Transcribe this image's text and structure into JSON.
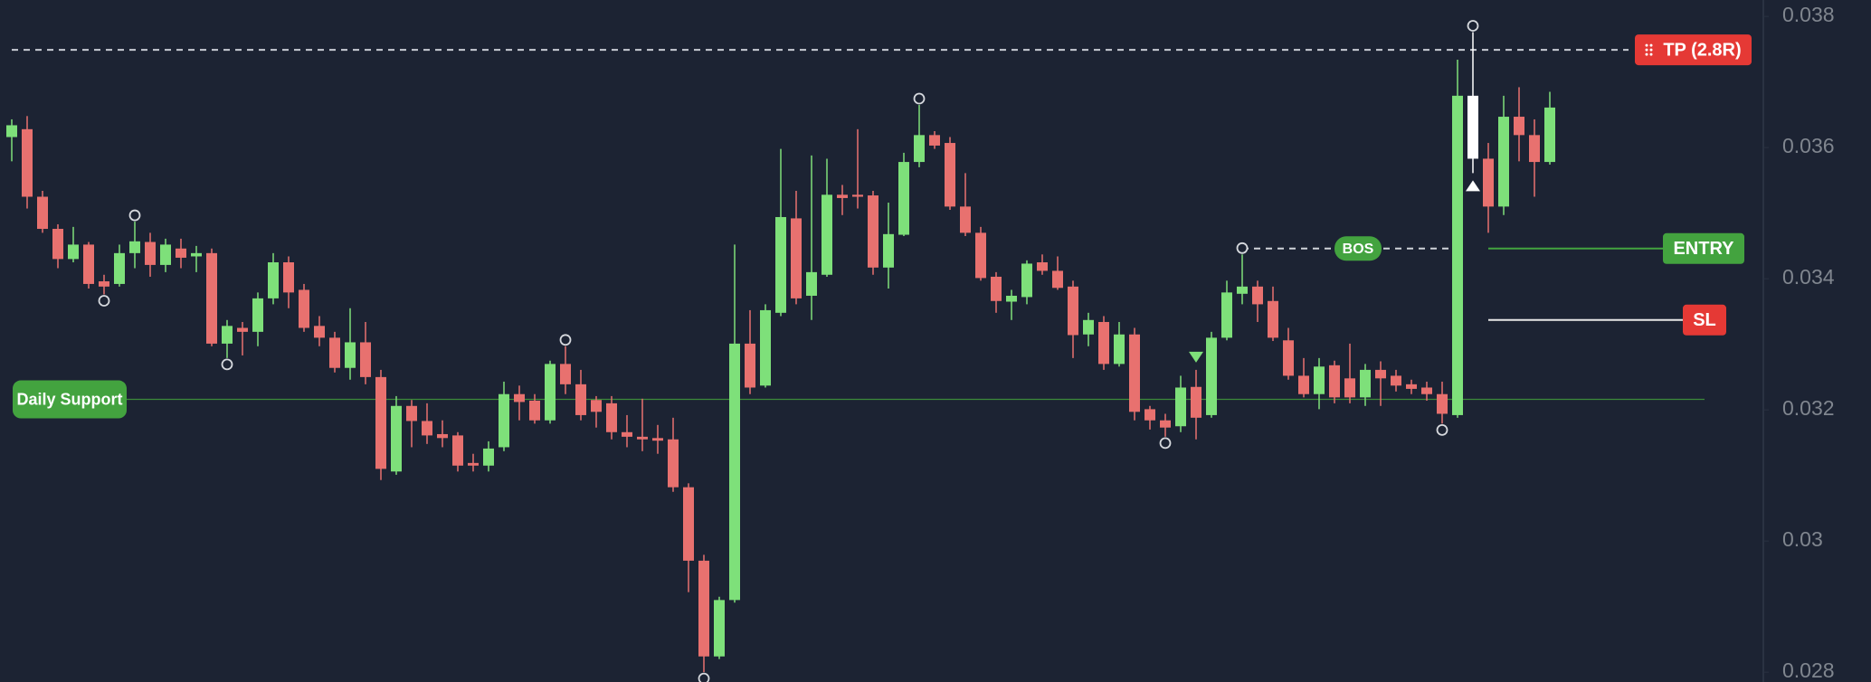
{
  "chart_data": {
    "type": "candlestick",
    "ylim": [
      0.02785,
      0.03825
    ],
    "yticks": [
      0.038,
      0.036,
      0.034,
      0.032,
      0.03,
      0.028
    ],
    "up_color": "#7ee07a",
    "down_color": "#e8716f",
    "highlight": {
      "index": 95,
      "color": "#ffffff"
    },
    "open": [
      0.03616,
      0.03628,
      0.03525,
      0.03476,
      0.0343,
      0.03452,
      0.03396,
      0.03392,
      0.03439,
      0.03456,
      0.03421,
      0.03446,
      0.03434,
      0.03439,
      0.03301,
      0.03325,
      0.03319,
      0.0337,
      0.03425,
      0.03383,
      0.03328,
      0.0331,
      0.03264,
      0.03303,
      0.0325,
      0.03106,
      0.03206,
      0.03183,
      0.03163,
      0.03161,
      0.03119,
      0.03115,
      0.03143,
      0.03224,
      0.03214,
      0.03184,
      0.0327,
      0.03239,
      0.03215,
      0.0321,
      0.03166,
      0.03159,
      0.03157,
      0.03155,
      0.03082,
      0.0297,
      0.02824,
      0.0291,
      0.03301,
      0.03237,
      0.03348,
      0.03492,
      0.03374,
      0.03406,
      0.03528,
      0.03528,
      0.03527,
      0.03417,
      0.03467,
      0.03578,
      0.03619,
      0.03607,
      0.0351,
      0.0347,
      0.03403,
      0.03365,
      0.03372,
      0.03425,
      0.03412,
      0.03388,
      0.03315,
      0.03334,
      0.0327,
      0.03315,
      0.03201,
      0.03184,
      0.03175,
      0.03235,
      0.03192,
      0.0331,
      0.03377,
      0.03388,
      0.03366,
      0.03306,
      0.03252,
      0.03224,
      0.03268,
      0.03248,
      0.03219,
      0.03261,
      0.03252,
      0.03239,
      0.03234,
      0.03224,
      0.03192,
      0.03679,
      0.03583,
      0.0351,
      0.03647,
      0.03619,
      0.03578
    ],
    "high": [
      0.03643,
      0.03648,
      0.03534,
      0.03483,
      0.03479,
      0.03456,
      0.03406,
      0.03452,
      0.03487,
      0.0347,
      0.03461,
      0.03461,
      0.0345,
      0.03446,
      0.03337,
      0.03334,
      0.03379,
      0.03439,
      0.03434,
      0.03392,
      0.03343,
      0.03319,
      0.03355,
      0.03334,
      0.03261,
      0.03221,
      0.03215,
      0.0321,
      0.03184,
      0.03166,
      0.03133,
      0.03152,
      0.03243,
      0.03237,
      0.03224,
      0.03275,
      0.03297,
      0.03261,
      0.03221,
      0.03221,
      0.03192,
      0.03217,
      0.03177,
      0.03188,
      0.03088,
      0.02979,
      0.02915,
      0.03452,
      0.03352,
      0.03361,
      0.03598,
      0.03534,
      0.03588,
      0.03583,
      0.03543,
      0.03628,
      0.03534,
      0.03516,
      0.03592,
      0.03665,
      0.03625,
      0.03616,
      0.03561,
      0.03479,
      0.0341,
      0.03383,
      0.03428,
      0.03437,
      0.03434,
      0.03397,
      0.03348,
      0.03343,
      0.03334,
      0.03325,
      0.03206,
      0.03194,
      0.03252,
      0.03261,
      0.03319,
      0.03397,
      0.03437,
      0.03397,
      0.03388,
      0.03325,
      0.03279,
      0.03279,
      0.03275,
      0.03301,
      0.0327,
      0.03274,
      0.03261,
      0.03246,
      0.03243,
      0.03243,
      0.03734,
      0.03776,
      0.03607,
      0.03679,
      0.03692,
      0.03643,
      0.03685
    ],
    "low": [
      0.03579,
      0.03507,
      0.0347,
      0.03416,
      0.03425,
      0.03385,
      0.03376,
      0.03388,
      0.03416,
      0.03403,
      0.0341,
      0.03416,
      0.0341,
      0.03297,
      0.03279,
      0.03283,
      0.03297,
      0.03361,
      0.03355,
      0.03319,
      0.03297,
      0.03257,
      0.03246,
      0.03239,
      0.03093,
      0.03101,
      0.03143,
      0.03148,
      0.03143,
      0.03106,
      0.03106,
      0.03106,
      0.03137,
      0.03184,
      0.03179,
      0.03179,
      0.03224,
      0.03184,
      0.03173,
      0.03155,
      0.03143,
      0.03137,
      0.03133,
      0.03075,
      0.02922,
      0.028,
      0.0282,
      0.02906,
      0.03224,
      0.03234,
      0.03343,
      0.03361,
      0.03337,
      0.03403,
      0.03497,
      0.03507,
      0.03406,
      0.03385,
      0.03465,
      0.0357,
      0.03598,
      0.03505,
      0.03465,
      0.03397,
      0.03348,
      0.03337,
      0.03361,
      0.03406,
      0.03383,
      0.03279,
      0.03297,
      0.03261,
      0.03266,
      0.03184,
      0.0317,
      0.03159,
      0.03166,
      0.03155,
      0.03188,
      0.03306,
      0.03361,
      0.03334,
      0.03305,
      0.03246,
      0.03219,
      0.03201,
      0.0321,
      0.0321,
      0.03206,
      0.03206,
      0.03228,
      0.03224,
      0.03214,
      0.03179,
      0.03188,
      0.03561,
      0.0347,
      0.03497,
      0.03579,
      0.03525,
      0.03574
    ],
    "close": [
      0.03634,
      0.03525,
      0.03476,
      0.0343,
      0.03452,
      0.03392,
      0.03388,
      0.03439,
      0.03457,
      0.03421,
      0.03452,
      0.03432,
      0.03439,
      0.03301,
      0.03328,
      0.03319,
      0.0337,
      0.03425,
      0.03379,
      0.03325,
      0.0331,
      0.03264,
      0.03303,
      0.0325,
      0.0311,
      0.03206,
      0.03183,
      0.03161,
      0.03157,
      0.03115,
      0.03115,
      0.03141,
      0.03224,
      0.03212,
      0.03184,
      0.0327,
      0.03239,
      0.03192,
      0.03197,
      0.03166,
      0.03159,
      0.03155,
      0.03153,
      0.03082,
      0.0297,
      0.02824,
      0.0291,
      0.03301,
      0.03234,
      0.03352,
      0.03494,
      0.0337,
      0.0341,
      0.03528,
      0.03523,
      0.03525,
      0.03417,
      0.03468,
      0.03578,
      0.03619,
      0.03603,
      0.0351,
      0.0347,
      0.03401,
      0.03366,
      0.03374,
      0.03423,
      0.03412,
      0.03386,
      0.03314,
      0.03337,
      0.0327,
      0.03315,
      0.03197,
      0.03184,
      0.03173,
      0.03234,
      0.03188,
      0.0331,
      0.03379,
      0.03388,
      0.03361,
      0.0331,
      0.03252,
      0.03224,
      0.03266,
      0.03219,
      0.03219,
      0.03261,
      0.03248,
      0.03237,
      0.03232,
      0.03224,
      0.03194,
      0.03679,
      0.03583,
      0.0351,
      0.03647,
      0.03619,
      0.03578,
      0.03661
    ],
    "pivots": [
      {
        "index": 6,
        "at": "low"
      },
      {
        "index": 8,
        "at": "high"
      },
      {
        "index": 14,
        "at": "low"
      },
      {
        "index": 36,
        "at": "high"
      },
      {
        "index": 45,
        "at": "low"
      },
      {
        "index": 59,
        "at": "high"
      },
      {
        "index": 75,
        "at": "low"
      },
      {
        "index": 80,
        "at": "high"
      },
      {
        "index": 93,
        "at": "low"
      },
      {
        "index": 95,
        "at": "high"
      }
    ],
    "markers": [
      {
        "index": 77,
        "shape": "down",
        "color": "#7ee07a"
      },
      {
        "index": 95,
        "shape": "up",
        "color": "#ffffff"
      }
    ],
    "levels": [
      {
        "label": "TP (2.8R)",
        "value": 0.03749,
        "color": "#e53935",
        "line_color": "#c8ccd4",
        "dashed": true
      },
      {
        "label": "ENTRY",
        "value": 0.03446,
        "color": "#43a33f",
        "line_color": "#43a33f",
        "dashed": false
      },
      {
        "label": "SL",
        "value": 0.03337,
        "color": "#e53935",
        "line_color": "#e8e8e8",
        "dashed": false
      },
      {
        "label": "Daily Support",
        "value": 0.03216,
        "color": "#43a33f",
        "line_color": "#3c8a3a",
        "dashed": false
      },
      {
        "label": "BOS",
        "value": 0.03446,
        "color": "#43a33f",
        "line_color": "#d0d4da",
        "dashed": true
      }
    ]
  }
}
